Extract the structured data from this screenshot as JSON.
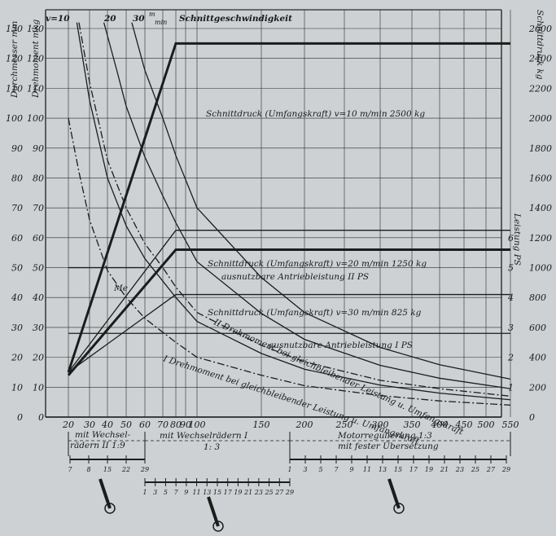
{
  "chart_data": {
    "type": "line",
    "header": {
      "v10": "v=10",
      "v20": "20",
      "v30": "30",
      "unit_m": "m",
      "unit_min": "min",
      "title": "Schnittgeschwindigkeit"
    },
    "left_axes": {
      "durchmesser_label": "Durchmesser mm",
      "drehmoment_label": "Drehmoment mkg",
      "ticks": [
        "0",
        "10",
        "20",
        "30",
        "40",
        "50",
        "60",
        "70",
        "80",
        "90",
        "100",
        "110",
        "120",
        "130"
      ],
      "tick_values": [
        0,
        10,
        20,
        30,
        40,
        50,
        60,
        70,
        80,
        90,
        100,
        110,
        120,
        130
      ]
    },
    "right_axes": {
      "schnittdruck_label": "Schnittdruck kg",
      "schnittdruck_ticks": [
        "0",
        "200",
        "400",
        "600",
        "800",
        "1000",
        "1200",
        "1400",
        "1600",
        "1800",
        "2000",
        "2200",
        "2400",
        "2600"
      ],
      "schnittdruck_values": [
        0,
        200,
        400,
        600,
        800,
        1000,
        1200,
        1400,
        1600,
        1800,
        2000,
        2200,
        2400,
        2600
      ],
      "leistung_label": "Leistung PS",
      "leistung_ticks": [
        "1",
        "2",
        "3",
        "4",
        "5",
        "6"
      ],
      "leistung_values": [
        1,
        2,
        3,
        4,
        5,
        6
      ]
    },
    "x_axis": {
      "ticks": [
        "20",
        "30",
        "40",
        "50",
        "60",
        "70",
        "80",
        "90",
        "100",
        "150",
        "200",
        "250",
        "300",
        "350",
        "400",
        "450",
        "500",
        "550"
      ],
      "tick_values": [
        20,
        30,
        40,
        50,
        60,
        70,
        80,
        90,
        100,
        150,
        200,
        250,
        300,
        350,
        400,
        450,
        500,
        550
      ],
      "section1_line1": "mit Wechsel-",
      "section1_line2": "rädern II   1:9",
      "section2_line1": "mit Wechselrädern I",
      "section2_line2": "1: 3",
      "section3_line1": "Motorregulierung  1:3",
      "section3_line2": "mit fester Übersetzung"
    },
    "annotations": {
      "sd10": "Schnittdruck (Umfangskraft) v=10 m/min   2500 kg",
      "sd20": "Schnittdruck (Umfangskraft) v=20 m/min   1250 kg",
      "leistung2": "ausnutzbare Antriebleistung II PS",
      "sd30": "Schnittdruck (Umfangskraft) v=30 m/min   825 kg",
      "leistung1": "ausnutzbare Antriebleistung  I PS",
      "dm2": "II Drehmoment bei gleichbleibender Leistung u. Umfangskraft",
      "dm1": "I Drehmoment bei gleichbleibender Leistung u. Umfangskraft",
      "me": "Me"
    },
    "scales": {
      "scale1": [
        "7",
        "8",
        "15",
        "22",
        "29"
      ],
      "scale2": [
        "1",
        "3",
        "5",
        "7",
        "9",
        "11",
        "13",
        "15",
        "17",
        "19",
        "21",
        "23",
        "25",
        "27",
        "29"
      ],
      "scale3": [
        "1",
        "3",
        "5",
        "7",
        "9",
        "11",
        "13",
        "15",
        "17",
        "19",
        "21",
        "23",
        "25",
        "27",
        "29"
      ]
    },
    "series": [
      {
        "key": "speed10",
        "style": "solid",
        "x": [
          24,
          30,
          40,
          50,
          60,
          70,
          80,
          100,
          150,
          200,
          300,
          400,
          550
        ],
        "y": [
          132,
          106,
          80,
          64,
          53,
          45.5,
          40,
          32,
          21.3,
          16,
          10.7,
          8,
          5.8
        ]
      },
      {
        "key": "speed20",
        "style": "solid",
        "x": [
          38,
          45,
          50,
          60,
          70,
          80,
          100,
          150,
          200,
          300,
          400,
          550
        ],
        "y": [
          132,
          116,
          104,
          87,
          74,
          65,
          52,
          34.7,
          26,
          17.3,
          13,
          9.5
        ]
      },
      {
        "key": "speed30",
        "style": "solid",
        "x": [
          53,
          60,
          70,
          80,
          100,
          150,
          200,
          300,
          400,
          550
        ],
        "y": [
          132,
          116,
          100,
          87.5,
          70,
          46.7,
          35,
          23.3,
          17.5,
          12.7
        ]
      },
      {
        "key": "sd10",
        "style": "thick",
        "x": [
          20,
          80,
          550
        ],
        "y": [
          15,
          125,
          125
        ]
      },
      {
        "key": "sd20",
        "style": "solid",
        "x": [
          20,
          80,
          550
        ],
        "y": [
          15,
          62.5,
          62.5
        ]
      },
      {
        "key": "sd30",
        "style": "solid",
        "x": [
          20,
          80,
          550
        ],
        "y": [
          15,
          41,
          41
        ]
      },
      {
        "key": "leistung2",
        "style": "thick",
        "x": [
          20,
          80,
          550
        ],
        "y": [
          14,
          56,
          56
        ]
      },
      {
        "key": "leistung1",
        "style": "solid",
        "x": [
          20,
          80,
          550
        ],
        "y": [
          28,
          28,
          28
        ]
      },
      {
        "key": "me",
        "style": "solid",
        "x": [
          20,
          60
        ],
        "y": [
          50,
          50
        ]
      },
      {
        "key": "dm2",
        "style": "dashdot",
        "x": [
          25,
          30,
          40,
          50,
          60,
          70,
          80,
          100,
          150,
          200,
          300,
          400,
          550
        ],
        "y": [
          132,
          112,
          86,
          70,
          58,
          50,
          43.5,
          35,
          24,
          18.5,
          12.3,
          9.5,
          7
        ]
      },
      {
        "key": "dm1",
        "style": "dashdot",
        "x": [
          20,
          25,
          30,
          40,
          50,
          60,
          80,
          100,
          150,
          200,
          300,
          400,
          550
        ],
        "y": [
          100,
          82,
          66,
          49,
          40,
          33,
          25,
          20,
          14,
          10.5,
          7.2,
          5.4,
          4
        ]
      }
    ]
  }
}
